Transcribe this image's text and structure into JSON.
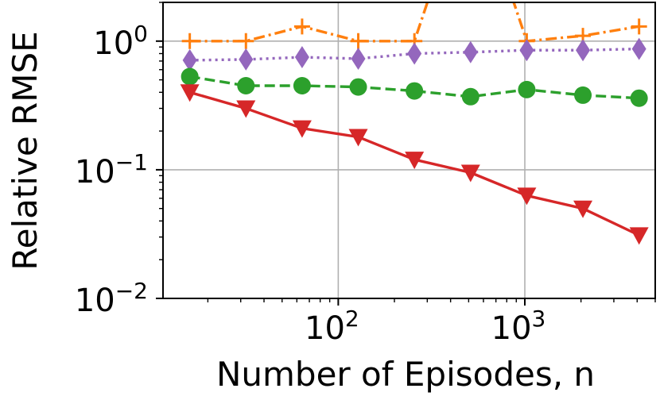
{
  "chart_data": {
    "type": "line",
    "xlabel": "Number of Episodes, n",
    "ylabel": "Relative RMSE",
    "xscale": "log",
    "yscale": "log",
    "xlim": [
      11.5,
      5000
    ],
    "ylim": [
      0.01,
      2.0
    ],
    "grid": true,
    "x_ticks": [
      {
        "base": "10",
        "exp": "2",
        "value": 100
      },
      {
        "base": "10",
        "exp": "3",
        "value": 1000
      }
    ],
    "y_ticks": [
      {
        "base": "10",
        "exp": "0",
        "value": 1
      },
      {
        "base": "10",
        "exp": "−1",
        "value": 0.1
      },
      {
        "base": "10",
        "exp": "−2",
        "value": 0.01
      }
    ],
    "x": [
      16,
      32,
      64,
      128,
      256,
      512,
      1024,
      2048,
      4096
    ],
    "series": [
      {
        "color": "#ff7f0e",
        "marker": "plus",
        "linestyle": "dashdot",
        "values": [
          1.0,
          1.0,
          1.3,
          1.0,
          1.0,
          20.0,
          1.0,
          1.1,
          1.3
        ]
      },
      {
        "color": "#9467bd",
        "marker": "diamond",
        "linestyle": "dotted",
        "values": [
          0.71,
          0.72,
          0.75,
          0.73,
          0.8,
          0.82,
          0.85,
          0.85,
          0.87
        ]
      },
      {
        "color": "#2ca02c",
        "marker": "circle",
        "linestyle": "dashed",
        "values": [
          0.53,
          0.45,
          0.45,
          0.44,
          0.41,
          0.37,
          0.42,
          0.38,
          0.36
        ]
      },
      {
        "color": "#d62728",
        "marker": "triangle-down",
        "linestyle": "solid",
        "values": [
          0.4,
          0.3,
          0.21,
          0.18,
          0.12,
          0.095,
          0.063,
          0.05,
          0.031
        ]
      }
    ]
  }
}
